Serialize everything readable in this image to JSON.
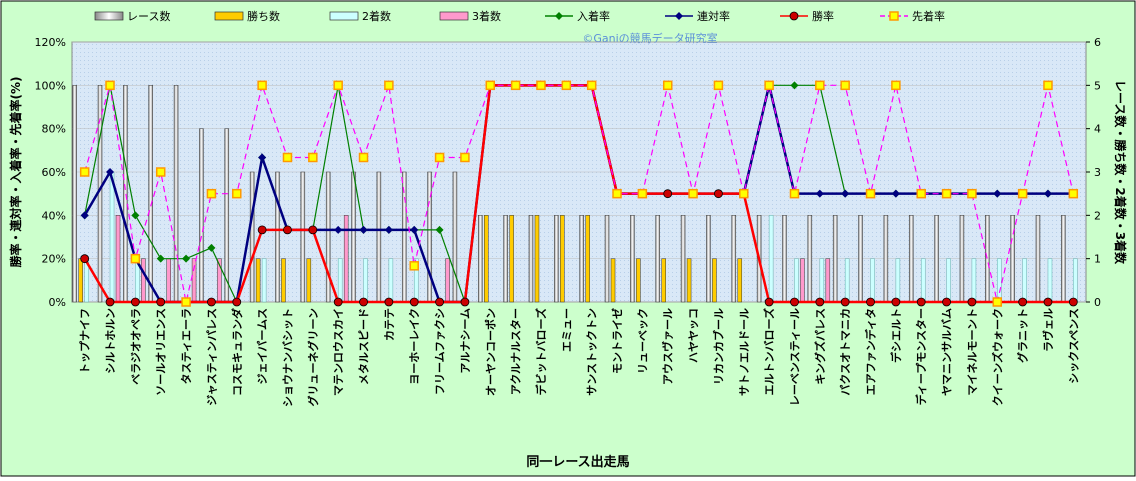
{
  "chart_data": {
    "type": "combo",
    "watermark": "©Ganiの競馬データ研究室",
    "x_label": "同一レース出走馬",
    "y_label": "勝率・連対率・入着率・先着率(%)",
    "y2_label": "レース数・勝ち数・2着数・3着数",
    "categories": [
      "トップナイフ",
      "シルトホルン",
      "ベラジオオペラ",
      "ソールオリエンス",
      "タスティエーラ",
      "ジャスティンパレス",
      "コスモキュランダ",
      "ジェイパームス",
      "ショウナンバシット",
      "グリューネグリーン",
      "マテンロウスカイ",
      "メタルスピード",
      "カテテ",
      "ヨーホーレイク",
      "フリームファクシ",
      "アルナシーム",
      "オーヤンコーポン",
      "アクルナルスター",
      "デビットバローズ",
      "エミュー",
      "サンストックトン",
      "モントライゼ",
      "リューベック",
      "アウスヴァール",
      "ハヤヤッコ",
      "リカンカブール",
      "サトノエルドール",
      "エルトンバローズ",
      "レーベンスティール",
      "キングズパレス",
      "パクスオトマニカ",
      "エアファンディタ",
      "デシエルト",
      "ディープモンスター",
      "ヤマニンサルバム",
      "マイネルモーント",
      "クイーンズウォーク",
      "グラニット",
      "ラヴェル",
      "シックスペンス"
    ],
    "ylim": [
      0,
      120
    ],
    "yticks": [
      {
        "value": 0,
        "label": "0%"
      },
      {
        "value": 20,
        "label": "20%"
      },
      {
        "value": 40,
        "label": "40%"
      },
      {
        "value": 60,
        "label": "60%"
      },
      {
        "value": 80,
        "label": "80%"
      },
      {
        "value": 100,
        "label": "100%"
      },
      {
        "value": 120,
        "label": "120%"
      }
    ],
    "y2lim": [
      0,
      6
    ],
    "y2ticks": [
      0,
      1,
      2,
      3,
      4,
      5,
      6
    ],
    "grid": true,
    "series": [
      {
        "name": "レース数",
        "type": "bar",
        "axis": "y2",
        "color": "#ffffff",
        "values": [
          5,
          5,
          5,
          5,
          5,
          4,
          4,
          3,
          3,
          3,
          3,
          3,
          3,
          3,
          3,
          3,
          2,
          2,
          2,
          2,
          2,
          2,
          2,
          2,
          2,
          2,
          2,
          2,
          2,
          2,
          2,
          2,
          2,
          2,
          2,
          2,
          2,
          2,
          2,
          2
        ]
      },
      {
        "name": "勝ち数",
        "type": "bar",
        "axis": "y2",
        "color": "#ffcc00",
        "values": [
          1,
          0,
          0,
          0,
          0,
          0,
          0,
          1,
          1,
          1,
          0,
          0,
          0,
          0,
          0,
          0,
          2,
          2,
          2,
          2,
          2,
          1,
          1,
          1,
          1,
          1,
          1,
          0,
          0,
          0,
          0,
          0,
          0,
          0,
          0,
          0,
          0,
          0,
          0,
          0
        ]
      },
      {
        "name": "2着数",
        "type": "bar",
        "axis": "y2",
        "color": "#ccffff",
        "values": [
          1,
          3,
          1,
          0,
          0,
          0,
          0,
          1,
          0,
          0,
          1,
          1,
          1,
          1,
          0,
          0,
          0,
          0,
          0,
          0,
          0,
          0,
          0,
          0,
          0,
          0,
          0,
          2,
          1,
          1,
          1,
          1,
          1,
          1,
          1,
          1,
          1,
          1,
          1,
          1
        ]
      },
      {
        "name": "3着数",
        "type": "bar",
        "axis": "y2",
        "color": "#ff99cc",
        "values": [
          0,
          2,
          1,
          1,
          1,
          1,
          0,
          0,
          0,
          0,
          2,
          0,
          0,
          0,
          1,
          0,
          0,
          0,
          0,
          0,
          0,
          0,
          0,
          0,
          0,
          0,
          0,
          0,
          1,
          1,
          0,
          0,
          0,
          0,
          0,
          0,
          0,
          0,
          0,
          0
        ]
      },
      {
        "name": "入着率",
        "type": "line",
        "marker": "diamond",
        "color": "#008000",
        "values": [
          40,
          100,
          40,
          20,
          20,
          25,
          0,
          66.7,
          33.3,
          33.3,
          100,
          33.3,
          33.3,
          33.3,
          33.3,
          0,
          100,
          100,
          100,
          100,
          100,
          50,
          50,
          50,
          50,
          50,
          50,
          100,
          100,
          100,
          50,
          50,
          50,
          50,
          50,
          50,
          50,
          50,
          50,
          50
        ]
      },
      {
        "name": "連対率",
        "type": "line",
        "marker": "diamond",
        "color": "#000080",
        "values": [
          40,
          60,
          20,
          0,
          0,
          0,
          0,
          66.7,
          33.3,
          33.3,
          33.3,
          33.3,
          33.3,
          33.3,
          0,
          0,
          100,
          100,
          100,
          100,
          100,
          50,
          50,
          50,
          50,
          50,
          50,
          100,
          50,
          50,
          50,
          50,
          50,
          50,
          50,
          50,
          50,
          50,
          50,
          50
        ]
      },
      {
        "name": "勝率",
        "type": "line",
        "marker": "circle",
        "color": "#ff0000",
        "values": [
          20,
          0,
          0,
          0,
          0,
          0,
          0,
          33.3,
          33.3,
          33.3,
          0,
          0,
          0,
          0,
          0,
          0,
          100,
          100,
          100,
          100,
          100,
          50,
          50,
          50,
          50,
          50,
          50,
          0,
          0,
          0,
          0,
          0,
          0,
          0,
          0,
          0,
          0,
          0,
          0,
          0
        ]
      },
      {
        "name": "先着率",
        "type": "line",
        "marker": "square",
        "dashed": true,
        "color": "#ff00ff",
        "values": [
          60,
          100,
          20,
          60,
          0,
          50,
          50,
          100,
          66.7,
          66.7,
          100,
          66.7,
          100,
          16.7,
          66.7,
          66.7,
          100,
          100,
          100,
          100,
          100,
          50,
          50,
          100,
          50,
          100,
          50,
          100,
          50,
          100,
          100,
          50,
          100,
          50,
          50,
          50,
          0,
          50,
          100,
          50
        ]
      }
    ]
  }
}
